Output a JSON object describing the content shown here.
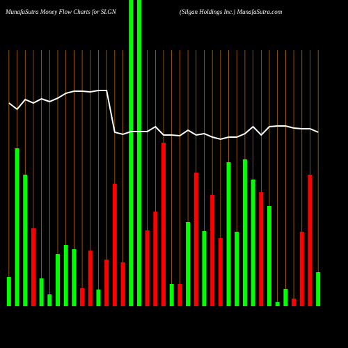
{
  "chart_data": {
    "type": "bar",
    "title": "MunafaSutra  Money Flow  Charts for SLGN",
    "subtitle": "(Silgan  Holdings Inc.) MunafaSutra.com",
    "categories": [
      null,
      null,
      null,
      null,
      null,
      null,
      null,
      null,
      null,
      null,
      null,
      null,
      null,
      null,
      null,
      null,
      null,
      null,
      null,
      null,
      null,
      null,
      null,
      null,
      null,
      null,
      null,
      null,
      null,
      null,
      null,
      null,
      null,
      null,
      null,
      null,
      null,
      null,
      null
    ],
    "values": [
      42,
      227,
      189,
      112,
      40,
      17,
      75,
      88,
      82,
      26,
      80,
      24,
      67,
      176,
      63,
      440,
      440,
      109,
      136,
      235,
      32,
      32,
      121,
      192,
      108,
      160,
      98,
      207,
      107,
      211,
      182,
      164,
      144,
      6,
      25,
      11,
      107,
      189,
      49
    ],
    "colors": [
      "#00ff00",
      "#00ff00",
      "#00ff00",
      "#ff0000",
      "#00ff00",
      "#00ff00",
      "#00ff00",
      "#00ff00",
      "#00ff00",
      "#ff0000",
      "#ff0000",
      "#00ff00",
      "#ff0000",
      "#ff0000",
      "#ff0000",
      "#00ff00",
      "#00ff00",
      "#ff0000",
      "#ff0000",
      "#ff0000",
      "#00ff00",
      "#ff0000",
      "#00ff00",
      "#ff0000",
      "#00ff00",
      "#ff0000",
      "#ff0000",
      "#00ff00",
      "#00ff00",
      "#00ff00",
      "#00ff00",
      "#ff0000",
      "#00ff00",
      "#00ff00",
      "#00ff00",
      "#ff0000",
      "#ff0000",
      "#ff0000",
      "#00ff00"
    ],
    "line": {
      "color": "#ffffff",
      "values": [
        292,
        283,
        297,
        292,
        298,
        294,
        299,
        306,
        309,
        309,
        308,
        310,
        310,
        250,
        247,
        251,
        251,
        251,
        258,
        246,
        246,
        245,
        253,
        246,
        248,
        243,
        240,
        243,
        243,
        248,
        258,
        246,
        258,
        259,
        259,
        256,
        255,
        255,
        250
      ]
    },
    "ylim": [
      0,
      440
    ],
    "grid_color": "#cc7a00"
  }
}
